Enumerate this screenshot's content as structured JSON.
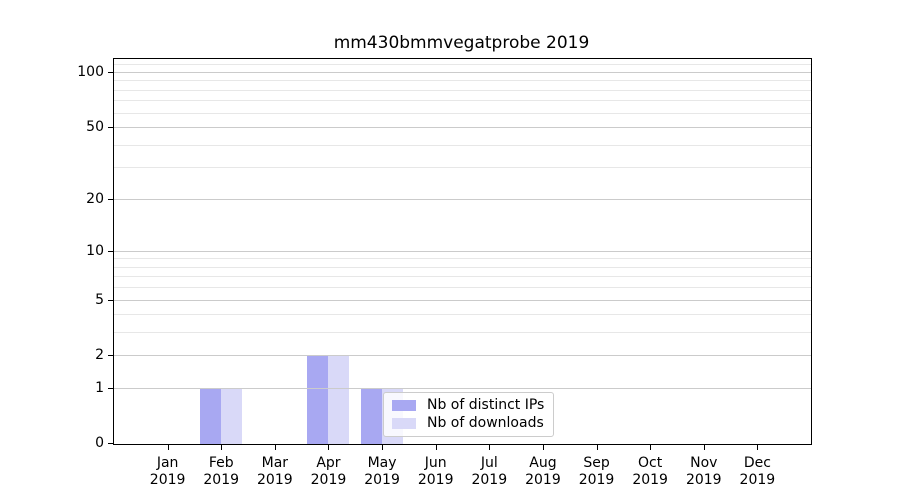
{
  "title": "mm430bmmvegatprobe 2019",
  "colors": {
    "bar_distinct_ips": "#a8a8f2",
    "bar_downloads": "#d9d9f8",
    "grid_major": "#cbcbcb",
    "grid_minor": "#e7e7e7",
    "axis": "#000000",
    "legend_border": "#cccccc"
  },
  "chart_data": {
    "type": "bar",
    "title": "mm430bmmvegatprobe 2019",
    "categories": [
      "Jan",
      "Feb",
      "Mar",
      "Apr",
      "May",
      "Jun",
      "Jul",
      "Aug",
      "Sep",
      "Oct",
      "Nov",
      "Dec"
    ],
    "x_tick_year": "2019",
    "series": [
      {
        "name": "Nb of distinct IPs",
        "color": "#a8a8f2",
        "values": [
          0,
          1,
          0,
          2,
          1,
          0,
          0,
          0,
          0,
          0,
          0,
          0
        ]
      },
      {
        "name": "Nb of downloads",
        "color": "#d9d9f8",
        "values": [
          0,
          1,
          0,
          2,
          1,
          0,
          0,
          0,
          0,
          0,
          0,
          0
        ]
      }
    ],
    "y_axis": {
      "scale": "log1p",
      "tick_labels": [
        "0",
        "1",
        "2",
        "5",
        "10",
        "20",
        "50",
        "100"
      ],
      "tick_values": [
        0,
        1,
        2,
        5,
        10,
        20,
        50,
        100
      ],
      "minor_gridline_values": [
        3,
        4,
        6,
        7,
        8,
        9,
        30,
        40,
        60,
        70,
        80,
        90,
        110
      ],
      "top_value": 117.7
    },
    "xlabel": "",
    "ylabel": "",
    "grid": true,
    "legend_position": "lower center-right, inside plot"
  }
}
